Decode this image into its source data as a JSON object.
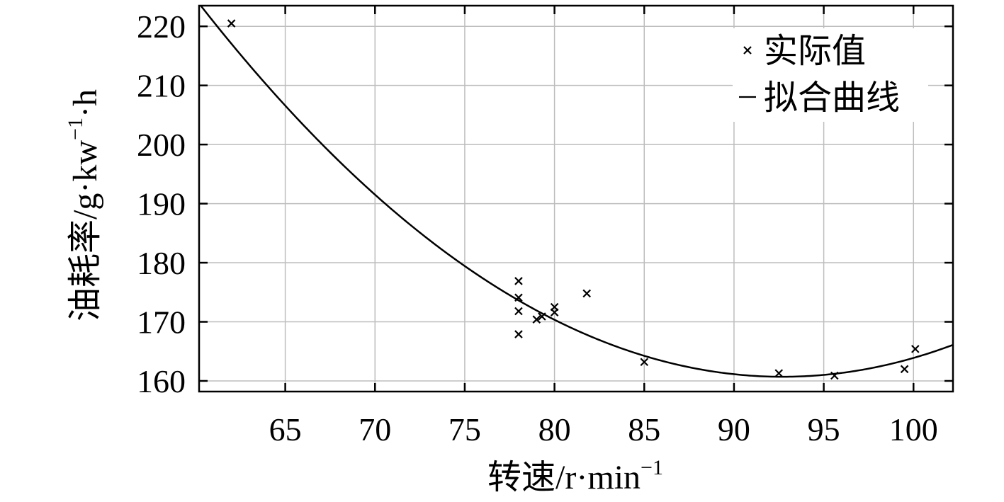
{
  "chart_data": {
    "type": "scatter",
    "xlabel": "转速/r·min",
    "xlabel_sup": "−1",
    "ylabel": "油耗率/g·kw",
    "ylabel_sup": "−1",
    "ylabel_tail": "·h",
    "xlim": [
      60.2,
      102.2
    ],
    "ylim": [
      158.2,
      223.5
    ],
    "xticks": [
      65,
      70,
      75,
      80,
      85,
      90,
      95,
      100
    ],
    "yticks": [
      160,
      170,
      180,
      190,
      200,
      210,
      220
    ],
    "grid": true,
    "legend": {
      "position": "top-right",
      "entries": [
        {
          "label": "实际值",
          "marker": "x"
        },
        {
          "label": "拟合曲线",
          "marker": "line"
        }
      ]
    },
    "series": [
      {
        "name": "实际值",
        "kind": "scatter",
        "points": [
          [
            62,
            220.5
          ],
          [
            78,
            176.9
          ],
          [
            78,
            174.1
          ],
          [
            78,
            171.8
          ],
          [
            78,
            167.9
          ],
          [
            79,
            170.4
          ],
          [
            79.3,
            170.9
          ],
          [
            80,
            172.5
          ],
          [
            80,
            171.6
          ],
          [
            81.8,
            174.8
          ],
          [
            85,
            163.2
          ],
          [
            92.5,
            161.3
          ],
          [
            95.6,
            160.9
          ],
          [
            99.5,
            162.0
          ],
          [
            100.1,
            165.4
          ]
        ]
      },
      {
        "name": "拟合曲线",
        "kind": "line",
        "model": "quadratic",
        "coefficients": {
          "vertex_x": 92.7,
          "vertex_y": 160.7,
          "a": 0.0598
        },
        "x_range": [
          60.2,
          102.2
        ]
      }
    ]
  }
}
